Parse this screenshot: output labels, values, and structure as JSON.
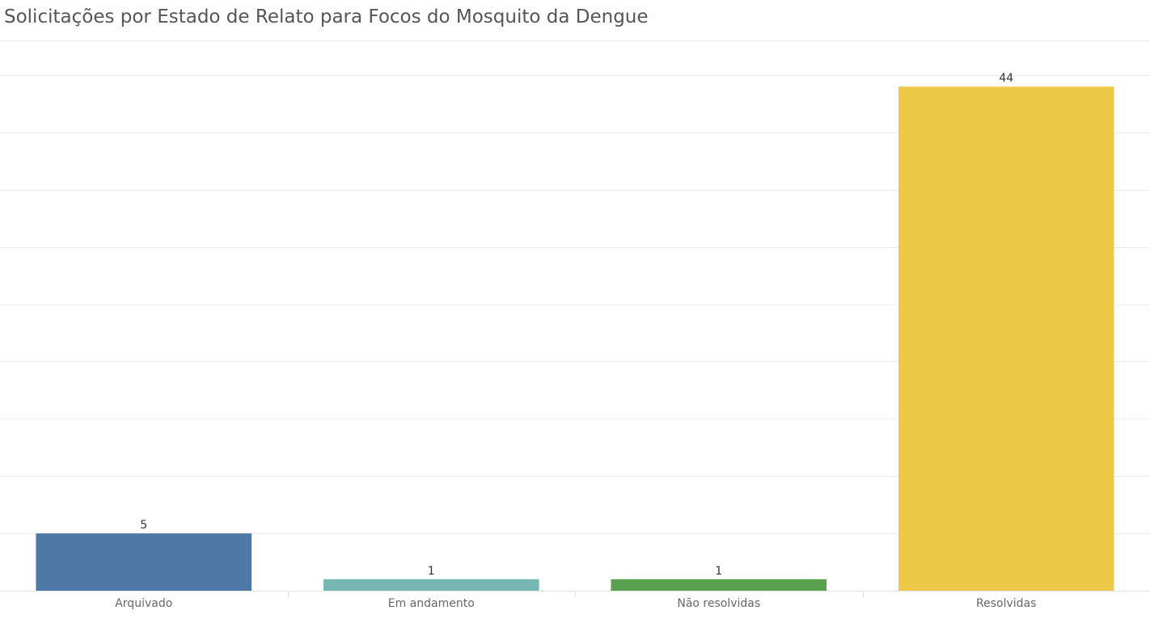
{
  "title": "Solicitações por Estado de Relato para Focos do Mosquito da Dengue",
  "chart_data": {
    "type": "bar",
    "title": "Solicitações por Estado de Relato para Focos do Mosquito da Dengue",
    "xlabel": "",
    "ylabel": "",
    "categories": [
      "Arquivado",
      "Em andamento",
      "Não resolvidas",
      "Resolvidas"
    ],
    "values": [
      5,
      1,
      1,
      44
    ],
    "value_labels": [
      "5",
      "1",
      "1",
      "44"
    ],
    "colors": [
      "#4e79a7",
      "#76b7b2",
      "#59a14f",
      "#edc948"
    ],
    "ylim": [
      0,
      45
    ],
    "grid": true,
    "legend": "none"
  }
}
